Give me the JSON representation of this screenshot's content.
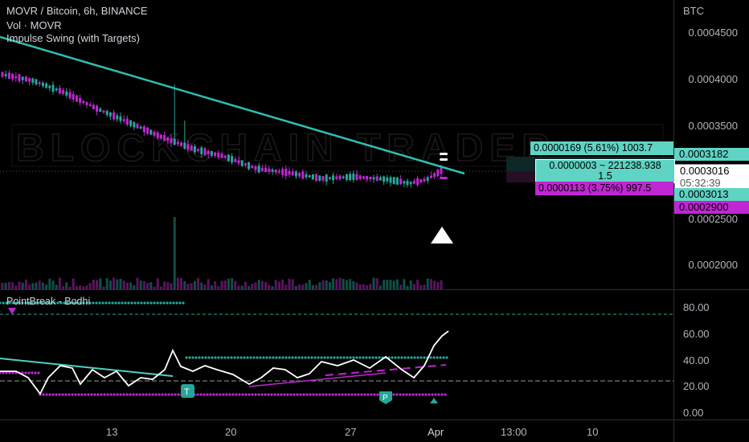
{
  "header": {
    "symbol_line": "MOVR / Bitcoin, 6h, BINANCE",
    "vol_line": "Vol · MOVR",
    "indicator_line": "Impulse Swing (with Targets)",
    "currency": "BTC"
  },
  "price_axis": {
    "labels": [
      "0.0004500",
      "0.0004000",
      "0.0003500",
      "0.0002500",
      "0.0002000"
    ]
  },
  "price_tags": {
    "target_up": "0.0003182",
    "current_price": "0.0003016",
    "countdown": "05:32:39",
    "level_mid": "0.0003013",
    "target_down": "0.0002900"
  },
  "info_boxes": {
    "upper": "0.0000169 (5.61%) 1003.7",
    "middle_line1": "0.0000003 ~ 221238.938",
    "middle_line2": "1.5",
    "lower": "0.0000113 (3.75%) 997.5"
  },
  "oscillator": {
    "title": "PointBreak - Bodhi",
    "axis_labels": [
      "80.00",
      "60.00",
      "40.00",
      "20.00",
      "0.00"
    ],
    "marker_t": "T",
    "marker_p": "P"
  },
  "time_axis": {
    "labels": [
      "13",
      "20",
      "27",
      "Apr",
      "13:00",
      "10"
    ]
  },
  "watermark": "BLOCKCHAIN TRADER",
  "colors": {
    "background": "#000000",
    "teal": "#26a69a",
    "magenta": "#c026d3",
    "white": "#ffffff",
    "grid": "#2a2e39"
  }
}
